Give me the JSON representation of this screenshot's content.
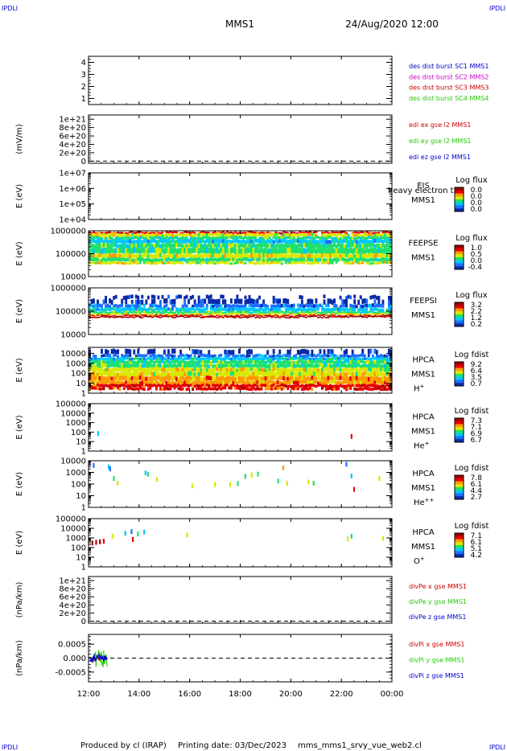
{
  "header": {
    "corner_label": "IPDLI",
    "spacecraft": "MMS1",
    "datetime": "24/Aug/2020 12:00"
  },
  "footer": {
    "produced_by": "Produced by cl (IRAP)",
    "printing_date": "Printing date: 03/Dec/2023",
    "script": "mms_mms1_srvy_vue_web2.cl"
  },
  "colors": {
    "red": "#cc0000",
    "green": "#22cc00",
    "blue": "#0000cc",
    "magenta": "#cc00cc",
    "spectrogram_scale": [
      "#0a2aa6",
      "#1f6fff",
      "#00c8ff",
      "#20e070",
      "#d8e800",
      "#ff9a00",
      "#e60000",
      "#a00000"
    ]
  },
  "chart_data": [
    {
      "type": "line",
      "panel": "dist_burst",
      "ylabel": "",
      "yticks": [
        "1",
        "2",
        "3",
        "4"
      ],
      "ylim": [
        0.5,
        4.5
      ],
      "legend": [
        {
          "text": "des dist burst SC1 MMS1",
          "color": "#0000cc"
        },
        {
          "text": "des dist burst SC2 MMS2",
          "color": "#cc00cc"
        },
        {
          "text": "des dist burst SC3 MMS3",
          "color": "#cc0000"
        },
        {
          "text": "des dist burst SC4 MMS4",
          "color": "#22cc00"
        }
      ],
      "series": []
    },
    {
      "type": "line",
      "panel": "edi_e_gse",
      "ylabel": "(mV/m)",
      "yticks": [
        "0",
        "2e+20",
        "4e+20",
        "6e+20",
        "8e+20",
        "1e+21"
      ],
      "ylim": [
        -5e+19,
        1.1e+21
      ],
      "zero_line": true,
      "legend": [
        {
          "text": "edi ex gse l2 MMS1",
          "color": "#cc0000"
        },
        {
          "text": "edi ey gse l2 MMS1",
          "color": "#22cc00"
        },
        {
          "text": "edi ez gse l2 MMS1",
          "color": "#0000cc"
        }
      ],
      "series": []
    },
    {
      "type": "heatmap",
      "panel": "eis",
      "ylabel": "E (eV)",
      "yscale": "log",
      "yticks": [
        "1e+04",
        "1e+05",
        "1e+06",
        "1e+07"
      ],
      "ylim": [
        10000,
        10000000
      ],
      "instrument": "EIS",
      "overlay_text": "heavy electron t",
      "spacecraft": "MMS1",
      "colorbar": {
        "title": "Log flux",
        "ticks": [
          "0.0",
          "0.0",
          "0.0",
          "0.0"
        ]
      },
      "bands": []
    },
    {
      "type": "heatmap",
      "panel": "feeps_e",
      "ylabel": "E (eV)",
      "yscale": "log",
      "yticks": [
        "10000",
        "100000",
        "1000000"
      ],
      "ylim": [
        10000,
        1000000
      ],
      "instrument": "FEEPSE",
      "spacecraft": "MMS1",
      "colorbar": {
        "title": "Log flux",
        "ticks": [
          "1.0",
          "0.5",
          "0.0",
          "-0.4"
        ]
      },
      "bands": [
        {
          "from": 750000,
          "to": 900000,
          "level": 6,
          "coverage": 0.9
        },
        {
          "from": 560000,
          "to": 750000,
          "level": 4,
          "coverage": 0.95
        },
        {
          "from": 420000,
          "to": 560000,
          "level": 3,
          "coverage": 0.95
        },
        {
          "from": 280000,
          "to": 420000,
          "level": 2,
          "coverage": 1.0
        },
        {
          "from": 180000,
          "to": 280000,
          "level": 3,
          "coverage": 1.0
        },
        {
          "from": 100000,
          "to": 180000,
          "level": 3,
          "coverage": 1.0
        },
        {
          "from": 65000,
          "to": 100000,
          "level": 4,
          "coverage": 1.0
        },
        {
          "from": 45000,
          "to": 65000,
          "level": 3,
          "coverage": 1.0
        },
        {
          "from": 35000,
          "to": 45000,
          "level": 4,
          "coverage": 0.9
        }
      ]
    },
    {
      "type": "heatmap",
      "panel": "feeps_i",
      "ylabel": "E (eV)",
      "yscale": "log",
      "yticks": [
        "10000",
        "100000",
        "1000000"
      ],
      "ylim": [
        10000,
        1000000
      ],
      "instrument": "FEEPSI",
      "spacecraft": "MMS1",
      "colorbar": {
        "title": "Log flux",
        "ticks": [
          "3.2",
          "2.2",
          "1.2",
          "0.2"
        ]
      },
      "bands": [
        {
          "from": 330000,
          "to": 480000,
          "level": 0,
          "coverage": 0.35
        },
        {
          "from": 200000,
          "to": 330000,
          "level": 0,
          "coverage": 0.55
        },
        {
          "from": 140000,
          "to": 200000,
          "level": 1,
          "coverage": 0.8
        },
        {
          "from": 100000,
          "to": 140000,
          "level": 2,
          "coverage": 0.95
        },
        {
          "from": 80000,
          "to": 100000,
          "level": 3,
          "coverage": 1.0
        },
        {
          "from": 68000,
          "to": 80000,
          "level": 4,
          "coverage": 1.0
        },
        {
          "from": 60000,
          "to": 68000,
          "level": 6,
          "coverage": 1.0
        },
        {
          "from": 53000,
          "to": 60000,
          "level": 7,
          "coverage": 1.0
        }
      ]
    },
    {
      "type": "heatmap",
      "panel": "hpca_h",
      "ylabel": "E (eV)",
      "yscale": "log",
      "yticks": [
        "1",
        "10",
        "100",
        "1000",
        "10000"
      ],
      "ylim": [
        1,
        40000
      ],
      "instrument": "HPCA",
      "spacecraft": "MMS1",
      "species": "H+",
      "colorbar": {
        "title": "Log fdist",
        "ticks": [
          "9.2",
          "6.4",
          "3.5",
          "0.7"
        ]
      },
      "bands": [
        {
          "from": 8000,
          "to": 25000,
          "level": 0,
          "coverage": 0.45
        },
        {
          "from": 4000,
          "to": 8000,
          "level": 1,
          "coverage": 0.85
        },
        {
          "from": 2000,
          "to": 4000,
          "level": 2,
          "coverage": 1.0
        },
        {
          "from": 900,
          "to": 2000,
          "level": 3,
          "coverage": 1.0
        },
        {
          "from": 350,
          "to": 900,
          "level": 3,
          "coverage": 1.0
        },
        {
          "from": 140,
          "to": 350,
          "level": 4,
          "coverage": 1.0
        },
        {
          "from": 50,
          "to": 140,
          "level": 4,
          "coverage": 1.0
        },
        {
          "from": 18,
          "to": 50,
          "level": 5,
          "coverage": 1.0
        },
        {
          "from": 8,
          "to": 18,
          "level": 5,
          "coverage": 1.0
        },
        {
          "from": 4,
          "to": 8,
          "level": 6,
          "coverage": 1.0
        },
        {
          "from": 2,
          "to": 4,
          "level": 6,
          "coverage": 0.8
        }
      ]
    },
    {
      "type": "heatmap",
      "panel": "hpca_he",
      "ylabel": "E (eV)",
      "yscale": "log",
      "yticks": [
        "1",
        "10",
        "100",
        "1000",
        "10000",
        "100000"
      ],
      "ylim": [
        1,
        100000
      ],
      "instrument": "HPCA",
      "spacecraft": "MMS1",
      "species": "He+",
      "colorbar": {
        "title": "Log fdist",
        "ticks": [
          "7.3",
          "7.1",
          "6.9",
          "6.7"
        ]
      },
      "points": [
        {
          "t": 0.38,
          "e": 70,
          "level": 2
        },
        {
          "t": 10.4,
          "e": 35,
          "level": 6
        }
      ]
    },
    {
      "type": "heatmap",
      "panel": "hpca_hepp",
      "ylabel": "E (eV)",
      "yscale": "log",
      "yticks": [
        "1",
        "10",
        "100",
        "1000",
        "10000"
      ],
      "ylim": [
        1,
        10000
      ],
      "instrument": "HPCA",
      "spacecraft": "MMS1",
      "species": "He++",
      "colorbar": {
        "title": "Log fdist",
        "ticks": [
          "7.8",
          "6.1",
          "4.4",
          "2.7"
        ]
      },
      "points": [
        {
          "t": 0.2,
          "e": 4000,
          "level": 1
        },
        {
          "t": 0.8,
          "e": 3000,
          "level": 2
        },
        {
          "t": 0.85,
          "e": 2000,
          "level": 1
        },
        {
          "t": 1.0,
          "e": 300,
          "level": 3
        },
        {
          "t": 1.15,
          "e": 120,
          "level": 4
        },
        {
          "t": 2.25,
          "e": 900,
          "level": 2
        },
        {
          "t": 2.35,
          "e": 700,
          "level": 3
        },
        {
          "t": 2.7,
          "e": 250,
          "level": 4
        },
        {
          "t": 4.1,
          "e": 70,
          "level": 4
        },
        {
          "t": 5.0,
          "e": 90,
          "level": 4
        },
        {
          "t": 5.6,
          "e": 90,
          "level": 4
        },
        {
          "t": 5.9,
          "e": 110,
          "level": 3
        },
        {
          "t": 6.2,
          "e": 450,
          "level": 3
        },
        {
          "t": 6.45,
          "e": 600,
          "level": 4
        },
        {
          "t": 6.7,
          "e": 700,
          "level": 3
        },
        {
          "t": 7.5,
          "e": 180,
          "level": 3
        },
        {
          "t": 7.7,
          "e": 2500,
          "level": 5
        },
        {
          "t": 7.85,
          "e": 120,
          "level": 4
        },
        {
          "t": 8.7,
          "e": 150,
          "level": 4
        },
        {
          "t": 8.9,
          "e": 120,
          "level": 3
        },
        {
          "t": 10.2,
          "e": 5000,
          "level": 1
        },
        {
          "t": 10.4,
          "e": 500,
          "level": 2
        },
        {
          "t": 10.5,
          "e": 35,
          "level": 6
        },
        {
          "t": 11.5,
          "e": 300,
          "level": 4
        }
      ]
    },
    {
      "type": "heatmap",
      "panel": "hpca_o",
      "ylabel": "E (eV)",
      "yscale": "log",
      "yticks": [
        "1",
        "10",
        "100",
        "1000",
        "10000",
        "100000"
      ],
      "ylim": [
        1,
        100000
      ],
      "instrument": "HPCA",
      "spacecraft": "MMS1",
      "species": "O+",
      "colorbar": {
        "title": "Log fdist",
        "ticks": [
          "7.1",
          "6.1",
          "5.1",
          "4.2"
        ]
      },
      "points": [
        {
          "t": 0.15,
          "e": 300,
          "level": 7
        },
        {
          "t": 0.3,
          "e": 350,
          "level": 7
        },
        {
          "t": 0.45,
          "e": 400,
          "level": 7
        },
        {
          "t": 0.6,
          "e": 450,
          "level": 6
        },
        {
          "t": 0.95,
          "e": 1500,
          "level": 4
        },
        {
          "t": 1.45,
          "e": 3000,
          "level": 2
        },
        {
          "t": 1.7,
          "e": 4500,
          "level": 1
        },
        {
          "t": 1.75,
          "e": 700,
          "level": 6
        },
        {
          "t": 1.95,
          "e": 2500,
          "level": 3
        },
        {
          "t": 2.2,
          "e": 4000,
          "level": 2
        },
        {
          "t": 3.9,
          "e": 2000,
          "level": 4
        },
        {
          "t": 10.25,
          "e": 800,
          "level": 4
        },
        {
          "t": 10.4,
          "e": 1500,
          "level": 3
        },
        {
          "t": 11.65,
          "e": 900,
          "level": 4
        }
      ]
    },
    {
      "type": "line",
      "panel": "divpe",
      "ylabel": "(nPa/km)",
      "yticks": [
        "0",
        "2e+20",
        "4e+20",
        "6e+20",
        "8e+20",
        "1e+21"
      ],
      "ylim": [
        -5e+19,
        1.1e+21
      ],
      "zero_line": true,
      "legend": [
        {
          "text": "divPe x gse MMS1",
          "color": "#cc0000"
        },
        {
          "text": "divPe y gse MMS1",
          "color": "#22cc00"
        },
        {
          "text": "divPe z gse MMS1",
          "color": "#0000cc"
        }
      ],
      "series": []
    },
    {
      "type": "line",
      "panel": "divpi",
      "ylabel": "(nPa/km)",
      "yticks": [
        "-0.0005",
        "0.000",
        "0.0005"
      ],
      "ylim": [
        -0.00085,
        0.00085
      ],
      "zero_line": true,
      "legend": [
        {
          "text": "divPi x gse MMS1",
          "color": "#cc0000"
        },
        {
          "text": "divPi y gse MMS1",
          "color": "#22cc00"
        },
        {
          "text": "divPi z gse MMS1",
          "color": "#0000cc"
        }
      ],
      "series": [
        {
          "name": "divPi x gse MMS1",
          "color": "#cc0000",
          "t_range": [
            0.2,
            0.75
          ],
          "amplitude": 0.00012
        },
        {
          "name": "divPi y gse MMS1",
          "color": "#22cc00",
          "t_range": [
            0.2,
            0.75
          ],
          "amplitude": 0.0004
        },
        {
          "name": "divPi z gse MMS1",
          "color": "#0000cc",
          "t_range": [
            0.05,
            0.75
          ],
          "amplitude": 0.00018
        }
      ]
    }
  ],
  "xaxis": {
    "ticks": [
      "12:00",
      "14:00",
      "16:00",
      "18:00",
      "20:00",
      "22:00",
      "00:00"
    ],
    "xlim_hours": [
      0,
      12
    ]
  }
}
